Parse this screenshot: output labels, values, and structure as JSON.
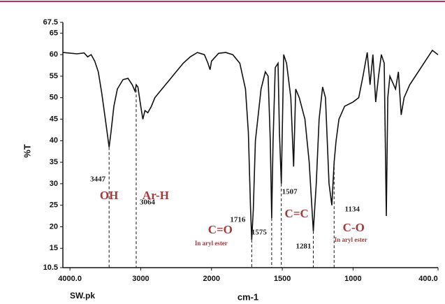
{
  "chart_data": {
    "type": "line",
    "y_label": "%T",
    "x_label": "cm-1",
    "file_label": "SW.pk",
    "color": "#111111",
    "x_scale_break": 2000,
    "xlim": [
      4100,
      400
    ],
    "ylim": [
      10.5,
      67.5
    ],
    "xticks": [
      {
        "value": 4000,
        "label": "4000.0"
      },
      3000,
      2000,
      1500,
      1000,
      {
        "value": 400,
        "label": "400.0"
      }
    ],
    "yticks": [
      67.5,
      65,
      60,
      55,
      50,
      45,
      40,
      35,
      30,
      25,
      20,
      15,
      10.5
    ],
    "x": [
      4100,
      3900,
      3800,
      3750,
      3700,
      3650,
      3600,
      3550,
      3500,
      3447,
      3420,
      3380,
      3330,
      3250,
      3180,
      3120,
      3080,
      3064,
      3040,
      3000,
      2970,
      2940,
      2900,
      2850,
      2800,
      2700,
      2600,
      2500,
      2400,
      2300,
      2200,
      2100,
      2050,
      2020,
      2000,
      1950,
      1900,
      1850,
      1800,
      1760,
      1740,
      1725,
      1716,
      1705,
      1690,
      1650,
      1620,
      1600,
      1585,
      1575,
      1565,
      1550,
      1530,
      1520,
      1507,
      1490,
      1470,
      1440,
      1420,
      1405,
      1380,
      1340,
      1310,
      1281,
      1260,
      1240,
      1215,
      1195,
      1170,
      1150,
      1134,
      1120,
      1100,
      1060,
      1000,
      960,
      930,
      900,
      880,
      860,
      840,
      820,
      800,
      780,
      765,
      755,
      740,
      700,
      680,
      660,
      640,
      600,
      560,
      520,
      480,
      440,
      400
    ],
    "values": [
      60.5,
      60.2,
      60.4,
      59.5,
      60,
      58.5,
      56,
      51,
      45,
      38.5,
      42,
      48,
      52,
      54.2,
      54.5,
      53,
      51.5,
      53,
      52.5,
      48,
      45,
      47,
      46.5,
      48,
      50,
      52,
      54,
      56,
      58,
      59.5,
      60.5,
      60,
      58,
      56.5,
      58.5,
      60.3,
      60.5,
      60,
      58,
      52,
      42,
      25,
      17,
      24,
      40,
      52,
      56,
      55,
      40,
      22,
      40,
      57,
      58,
      42,
      30,
      60,
      58,
      50,
      34,
      52,
      50,
      45,
      35,
      19,
      30,
      45,
      52.5,
      50,
      30,
      25,
      35,
      40,
      45,
      48,
      49,
      50,
      55,
      60.5,
      53,
      60,
      49,
      55,
      60,
      58,
      22.5,
      50,
      55,
      52,
      56,
      46,
      50,
      53,
      55,
      57,
      59,
      61,
      60
    ],
    "annotations": [
      {
        "x": 3447,
        "group": "OH"
      },
      {
        "x": 3064,
        "group": "Ar-H"
      },
      {
        "x": 1716,
        "group": "C=O",
        "note": "In aryl ester"
      },
      {
        "x": 1575
      },
      {
        "x": 1507,
        "group": "C=C"
      },
      {
        "x": 1281
      },
      {
        "x": 1134,
        "group": "C-O",
        "note": "In aryl ester"
      }
    ]
  }
}
